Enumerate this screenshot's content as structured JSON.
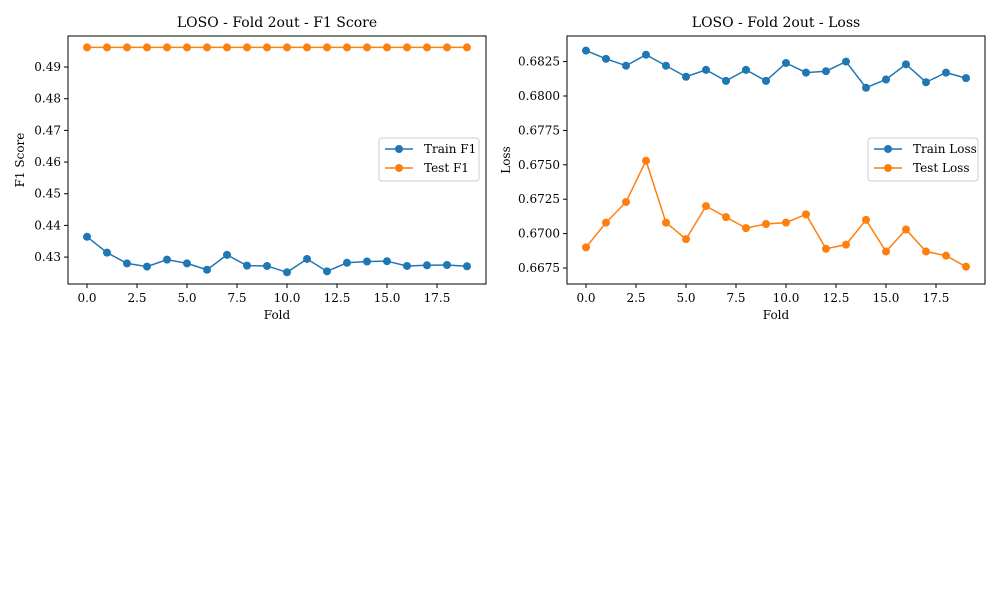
{
  "chart_data": [
    {
      "type": "line",
      "title": "LOSO - Fold 2out - F1 Score",
      "xlabel": "Fold",
      "ylabel": "F1 Score",
      "xlim": [
        -0.95,
        19.95
      ],
      "ylim": [
        0.4215,
        0.4998
      ],
      "xticks": [
        0,
        2.5,
        5,
        7.5,
        10,
        12.5,
        15,
        17.5
      ],
      "xtick_labels": [
        "0.0",
        "2.5",
        "5.0",
        "7.5",
        "10.0",
        "12.5",
        "15.0",
        "17.5"
      ],
      "yticks": [
        0.43,
        0.44,
        0.45,
        0.46,
        0.47,
        0.48,
        0.49
      ],
      "ytick_labels": [
        "0.43",
        "0.44",
        "0.45",
        "0.46",
        "0.47",
        "0.48",
        "0.49"
      ],
      "grid": false,
      "legend_position": "center-right",
      "x": [
        0,
        1,
        2,
        3,
        4,
        5,
        6,
        7,
        8,
        9,
        10,
        11,
        12,
        13,
        14,
        15,
        16,
        17,
        18,
        19
      ],
      "series": [
        {
          "name": "Train F1",
          "color": "#1f77b4",
          "values": [
            0.4364,
            0.4314,
            0.428,
            0.427,
            0.4292,
            0.428,
            0.426,
            0.4307,
            0.4273,
            0.4272,
            0.4252,
            0.4294,
            0.4255,
            0.4282,
            0.4286,
            0.4287,
            0.4272,
            0.4274,
            0.4275,
            0.4271
          ]
        },
        {
          "name": "Test F1",
          "color": "#ff7f0e",
          "values": [
            0.4962,
            0.4962,
            0.4962,
            0.4962,
            0.4962,
            0.4962,
            0.4962,
            0.4962,
            0.4962,
            0.4962,
            0.4962,
            0.4962,
            0.4962,
            0.4962,
            0.4962,
            0.4962,
            0.4962,
            0.4962,
            0.4962,
            0.4962
          ]
        }
      ]
    },
    {
      "type": "line",
      "title": "LOSO - Fold 2out - Loss",
      "xlabel": "Fold",
      "ylabel": "Loss",
      "xlim": [
        -0.95,
        19.95
      ],
      "ylim": [
        0.66634,
        0.68436
      ],
      "xticks": [
        0,
        2.5,
        5,
        7.5,
        10,
        12.5,
        15,
        17.5
      ],
      "xtick_labels": [
        "0.0",
        "2.5",
        "5.0",
        "7.5",
        "10.0",
        "12.5",
        "15.0",
        "17.5"
      ],
      "yticks": [
        0.6675,
        0.67,
        0.6725,
        0.675,
        0.6775,
        0.68,
        0.6825
      ],
      "ytick_labels": [
        "0.6675",
        "0.6700",
        "0.6725",
        "0.6750",
        "0.6775",
        "0.6800",
        "0.6825"
      ],
      "grid": false,
      "legend_position": "center-right",
      "x": [
        0,
        1,
        2,
        3,
        4,
        5,
        6,
        7,
        8,
        9,
        10,
        11,
        12,
        13,
        14,
        15,
        16,
        17,
        18,
        19
      ],
      "series": [
        {
          "name": "Train Loss",
          "color": "#1f77b4",
          "values": [
            0.6833,
            0.6827,
            0.6822,
            0.683,
            0.6822,
            0.6814,
            0.6819,
            0.6811,
            0.6819,
            0.6811,
            0.6824,
            0.6817,
            0.6818,
            0.6825,
            0.6806,
            0.6812,
            0.6823,
            0.681,
            0.6817,
            0.6813
          ]
        },
        {
          "name": "Test Loss",
          "color": "#ff7f0e",
          "values": [
            0.669,
            0.6708,
            0.6723,
            0.6753,
            0.6708,
            0.6696,
            0.672,
            0.6712,
            0.6704,
            0.6707,
            0.6708,
            0.6714,
            0.6689,
            0.6692,
            0.671,
            0.6687,
            0.6703,
            0.6687,
            0.6684,
            0.6676
          ]
        }
      ]
    }
  ]
}
